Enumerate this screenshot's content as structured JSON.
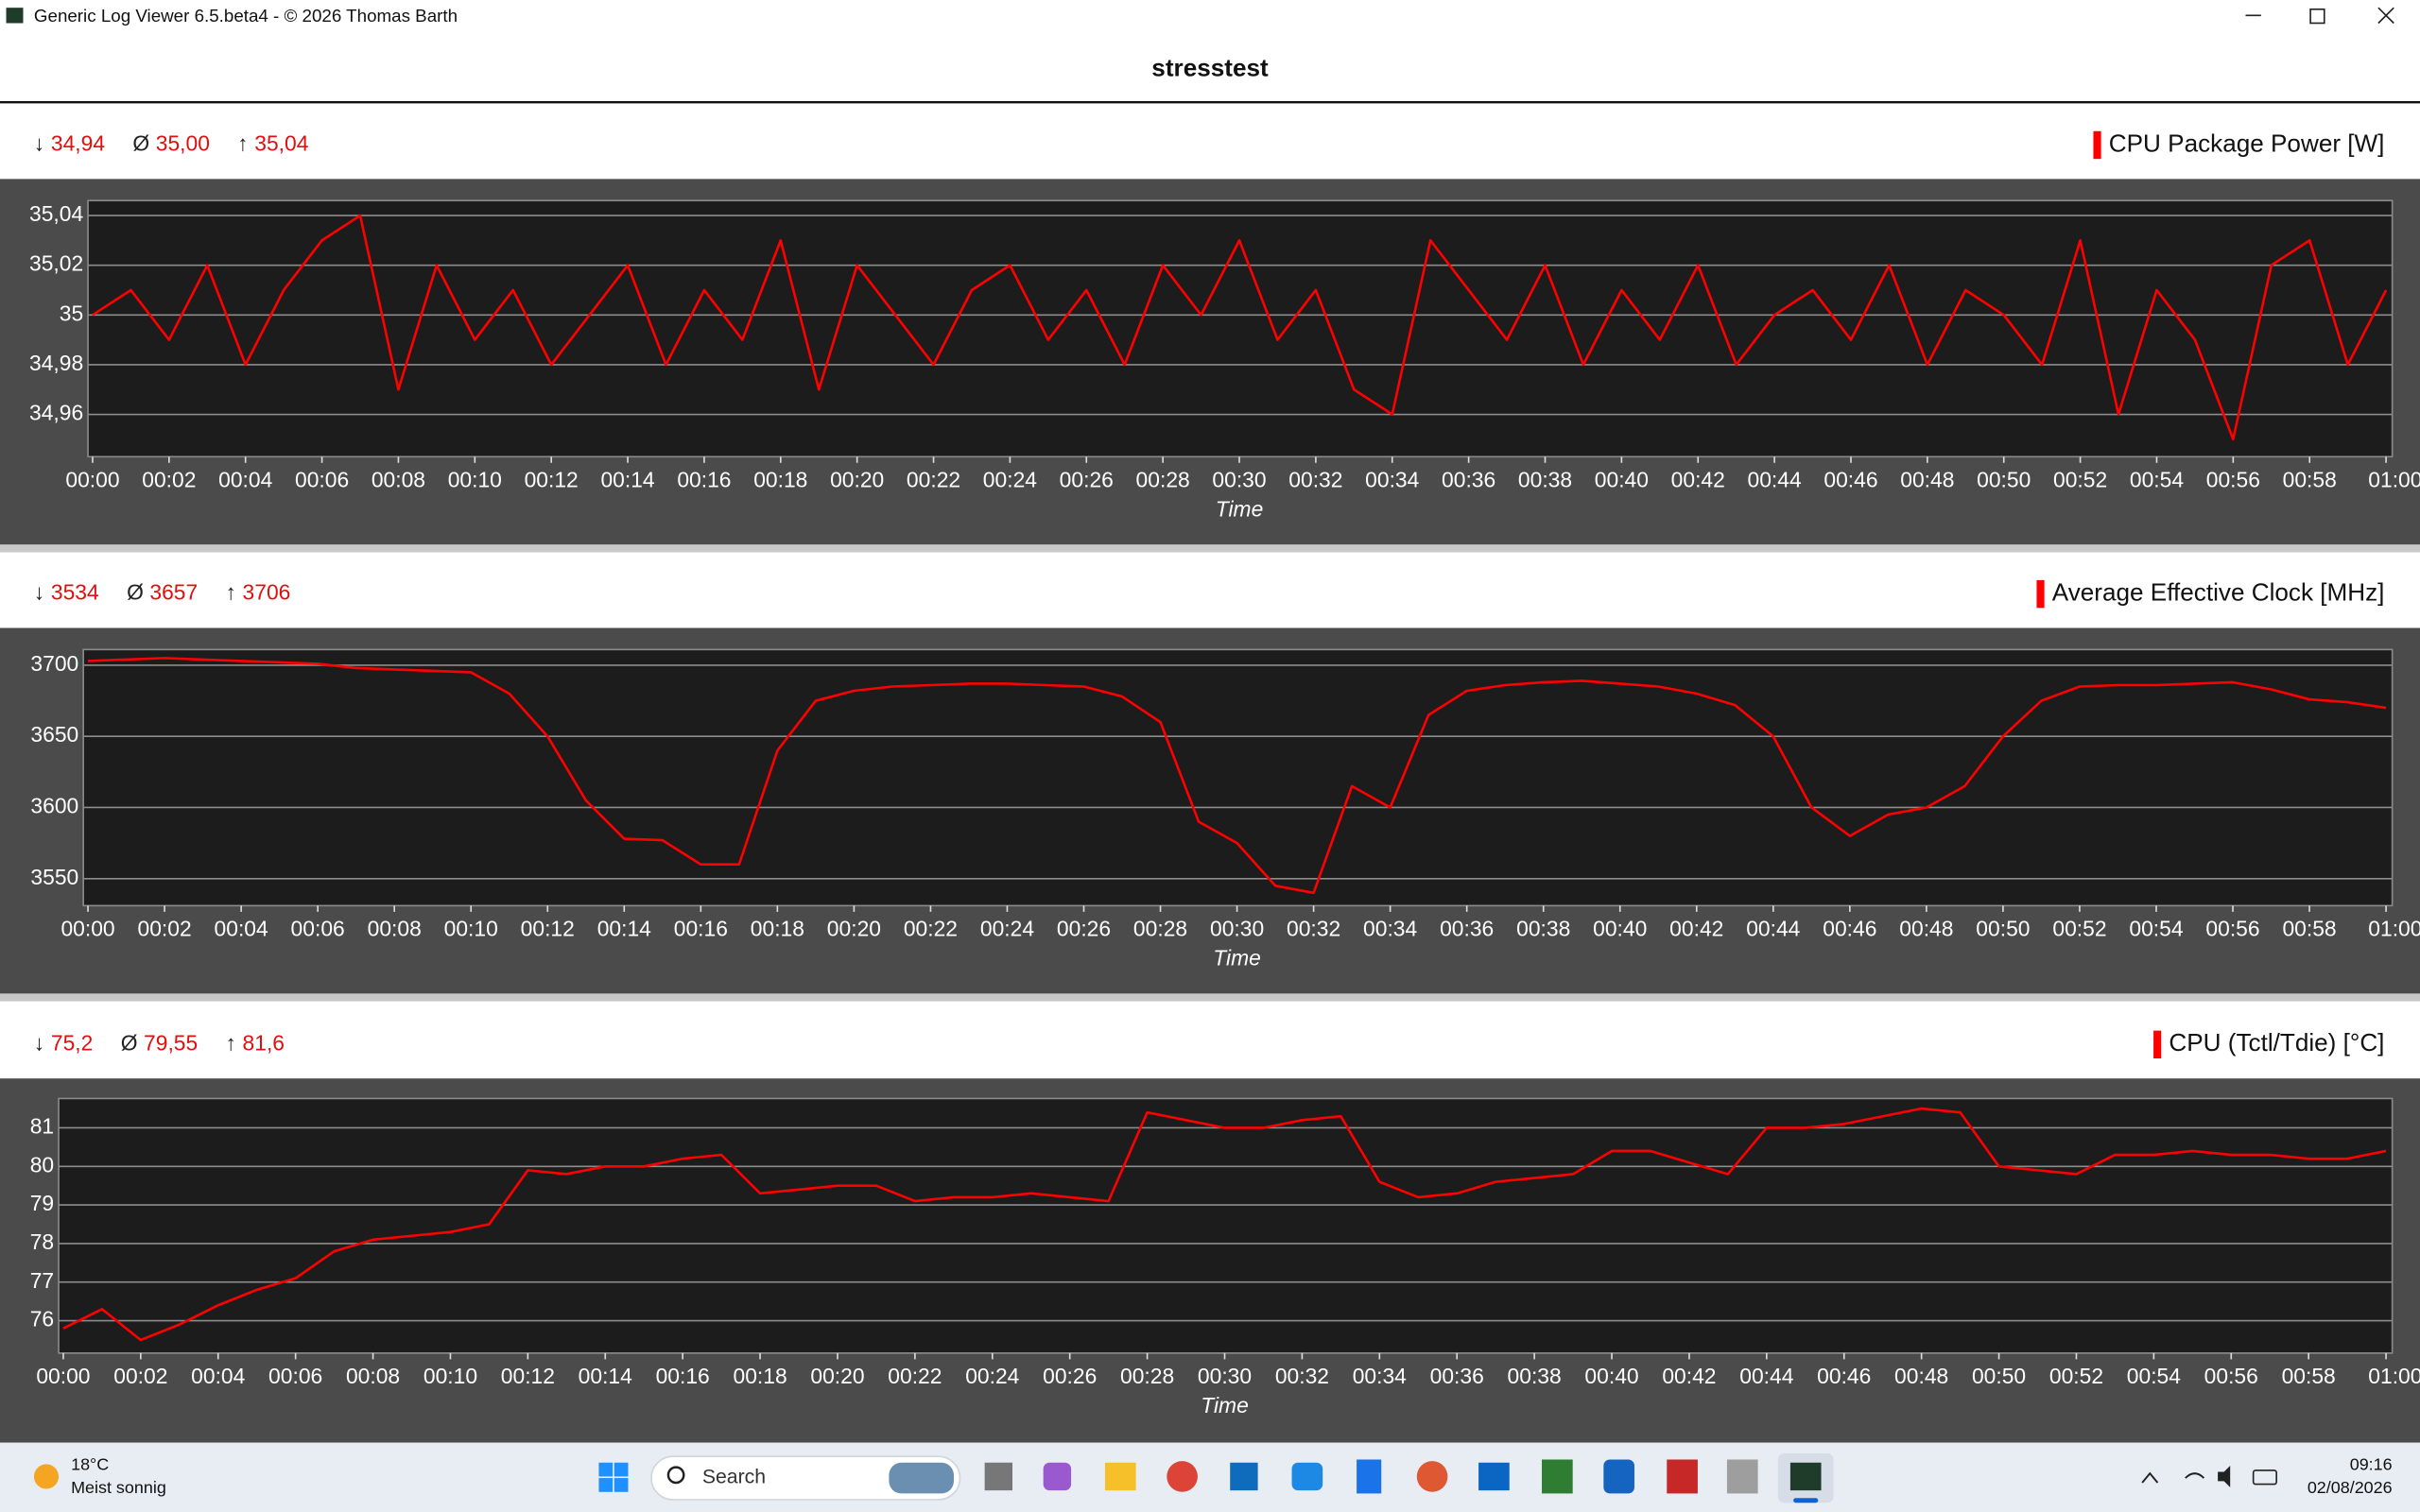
{
  "window": {
    "title": "Generic Log Viewer 6.5.beta4 - © 2026 Thomas Barth"
  },
  "header": {
    "title": "stresstest"
  },
  "chart_data": [
    {
      "type": "line",
      "stats": [
        {
          "symbol": "↓",
          "value": "34,94"
        },
        {
          "symbol": "Ø",
          "value": "35,00"
        },
        {
          "symbol": "↑",
          "value": "35,04"
        }
      ],
      "x_label": "Time",
      "x": [
        0,
        1,
        2,
        3,
        4,
        5,
        6,
        7,
        8,
        9,
        10,
        11,
        12,
        13,
        14,
        15,
        16,
        17,
        18,
        19,
        20,
        21,
        22,
        23,
        24,
        25,
        26,
        27,
        28,
        29,
        30,
        31,
        32,
        33,
        34,
        35,
        36,
        37,
        38,
        39,
        40,
        41,
        42,
        43,
        44,
        45,
        46,
        47,
        48,
        49,
        50,
        51,
        52,
        53,
        54,
        55,
        56,
        57,
        58,
        59,
        60
      ],
      "series": [
        {
          "name": "CPU Package Power [W]",
          "color": "#ff0000",
          "values": [
            35.0,
            35.01,
            34.99,
            35.02,
            34.98,
            35.01,
            35.03,
            35.04,
            34.97,
            35.02,
            34.99,
            35.01,
            34.98,
            35.0,
            35.02,
            34.98,
            35.01,
            34.99,
            35.03,
            34.97,
            35.02,
            35.0,
            34.98,
            35.01,
            35.02,
            34.99,
            35.01,
            34.98,
            35.02,
            35.0,
            35.03,
            34.99,
            35.01,
            34.97,
            34.96,
            35.03,
            35.01,
            34.99,
            35.02,
            34.98,
            35.01,
            34.99,
            35.02,
            34.98,
            35.0,
            35.01,
            34.99,
            35.02,
            34.98,
            35.01,
            35.0,
            34.98,
            35.03,
            34.96,
            35.01,
            34.99,
            34.95,
            35.02,
            35.03,
            34.98,
            35.01
          ]
        }
      ],
      "xlim": [
        0,
        60
      ],
      "xticks": [
        {
          "value": 0,
          "label": "00:00"
        },
        {
          "value": 2,
          "label": "00:02"
        },
        {
          "value": 4,
          "label": "00:04"
        },
        {
          "value": 6,
          "label": "00:06"
        },
        {
          "value": 8,
          "label": "00:08"
        },
        {
          "value": 10,
          "label": "00:10"
        },
        {
          "value": 12,
          "label": "00:12"
        },
        {
          "value": 14,
          "label": "00:14"
        },
        {
          "value": 16,
          "label": "00:16"
        },
        {
          "value": 18,
          "label": "00:18"
        },
        {
          "value": 20,
          "label": "00:20"
        },
        {
          "value": 22,
          "label": "00:22"
        },
        {
          "value": 24,
          "label": "00:24"
        },
        {
          "value": 26,
          "label": "00:26"
        },
        {
          "value": 28,
          "label": "00:28"
        },
        {
          "value": 30,
          "label": "00:30"
        },
        {
          "value": 32,
          "label": "00:32"
        },
        {
          "value": 34,
          "label": "00:34"
        },
        {
          "value": 36,
          "label": "00:36"
        },
        {
          "value": 38,
          "label": "00:38"
        },
        {
          "value": 40,
          "label": "00:40"
        },
        {
          "value": 42,
          "label": "00:42"
        },
        {
          "value": 44,
          "label": "00:44"
        },
        {
          "value": 46,
          "label": "00:46"
        },
        {
          "value": 48,
          "label": "00:48"
        },
        {
          "value": 50,
          "label": "00:50"
        },
        {
          "value": 52,
          "label": "00:52"
        },
        {
          "value": 54,
          "label": "00:54"
        },
        {
          "value": 56,
          "label": "00:56"
        },
        {
          "value": 58,
          "label": "00:58"
        },
        {
          "value": 60,
          "label": "01:00"
        }
      ],
      "ylim": [
        34.943,
        35.046
      ],
      "yticks": [
        {
          "value": 34.96,
          "label": "34,96"
        },
        {
          "value": 34.98,
          "label": "34,98"
        },
        35,
        {
          "value": 35.02,
          "label": "35,02"
        },
        {
          "value": 35.04,
          "label": "35,04"
        }
      ],
      "grid": true
    },
    {
      "type": "line",
      "stats": [
        {
          "symbol": "↓",
          "value": "3534"
        },
        {
          "symbol": "Ø",
          "value": "3657"
        },
        {
          "symbol": "↑",
          "value": "3706"
        }
      ],
      "x_label": "Time",
      "x": [
        0,
        1,
        2,
        3,
        4,
        5,
        6,
        7,
        8,
        9,
        10,
        11,
        12,
        13,
        14,
        15,
        16,
        17,
        18,
        19,
        20,
        21,
        22,
        23,
        24,
        25,
        26,
        27,
        28,
        29,
        30,
        31,
        32,
        33,
        34,
        35,
        36,
        37,
        38,
        39,
        40,
        41,
        42,
        43,
        44,
        45,
        46,
        47,
        48,
        49,
        50,
        51,
        52,
        53,
        54,
        55,
        56,
        57,
        58,
        59,
        60
      ],
      "series": [
        {
          "name": "Average Effective Clock [MHz]",
          "color": "#ff0000",
          "values": [
            3703,
            3704,
            3705,
            3704,
            3703,
            3702,
            3701,
            3698,
            3697,
            3696,
            3695,
            3680,
            3650,
            3605,
            3578,
            3577,
            3560,
            3560,
            3640,
            3675,
            3682,
            3685,
            3686,
            3687,
            3687,
            3686,
            3685,
            3678,
            3660,
            3590,
            3575,
            3545,
            3540,
            3615,
            3600,
            3665,
            3682,
            3686,
            3688,
            3689,
            3687,
            3685,
            3680,
            3672,
            3650,
            3600,
            3580,
            3595,
            3600,
            3615,
            3650,
            3675,
            3685,
            3686,
            3686,
            3687,
            3688,
            3683,
            3676,
            3674,
            3670
          ]
        }
      ],
      "xlim": [
        0,
        60
      ],
      "xticks": [
        {
          "value": 0,
          "label": "00:00"
        },
        {
          "value": 2,
          "label": "00:02"
        },
        {
          "value": 4,
          "label": "00:04"
        },
        {
          "value": 6,
          "label": "00:06"
        },
        {
          "value": 8,
          "label": "00:08"
        },
        {
          "value": 10,
          "label": "00:10"
        },
        {
          "value": 12,
          "label": "00:12"
        },
        {
          "value": 14,
          "label": "00:14"
        },
        {
          "value": 16,
          "label": "00:16"
        },
        {
          "value": 18,
          "label": "00:18"
        },
        {
          "value": 20,
          "label": "00:20"
        },
        {
          "value": 22,
          "label": "00:22"
        },
        {
          "value": 24,
          "label": "00:24"
        },
        {
          "value": 26,
          "label": "00:26"
        },
        {
          "value": 28,
          "label": "00:28"
        },
        {
          "value": 30,
          "label": "00:30"
        },
        {
          "value": 32,
          "label": "00:32"
        },
        {
          "value": 34,
          "label": "00:34"
        },
        {
          "value": 36,
          "label": "00:36"
        },
        {
          "value": 38,
          "label": "00:38"
        },
        {
          "value": 40,
          "label": "00:40"
        },
        {
          "value": 42,
          "label": "00:42"
        },
        {
          "value": 44,
          "label": "00:44"
        },
        {
          "value": 46,
          "label": "00:46"
        },
        {
          "value": 48,
          "label": "00:48"
        },
        {
          "value": 50,
          "label": "00:50"
        },
        {
          "value": 52,
          "label": "00:52"
        },
        {
          "value": 54,
          "label": "00:54"
        },
        {
          "value": 56,
          "label": "00:56"
        },
        {
          "value": 58,
          "label": "00:58"
        },
        {
          "value": 60,
          "label": "01:00"
        }
      ],
      "ylim": [
        3531,
        3711
      ],
      "yticks": [
        3550,
        3600,
        3650,
        3700
      ],
      "grid": true
    },
    {
      "type": "line",
      "stats": [
        {
          "symbol": "↓",
          "value": "75,2"
        },
        {
          "symbol": "Ø",
          "value": "79,55"
        },
        {
          "symbol": "↑",
          "value": "81,6"
        }
      ],
      "x_label": "Time",
      "x": [
        0,
        1,
        2,
        3,
        4,
        5,
        6,
        7,
        8,
        9,
        10,
        11,
        12,
        13,
        14,
        15,
        16,
        17,
        18,
        19,
        20,
        21,
        22,
        23,
        24,
        25,
        26,
        27,
        28,
        29,
        30,
        31,
        32,
        33,
        34,
        35,
        36,
        37,
        38,
        39,
        40,
        41,
        42,
        43,
        44,
        45,
        46,
        47,
        48,
        49,
        50,
        51,
        52,
        53,
        54,
        55,
        56,
        57,
        58,
        59,
        60
      ],
      "series": [
        {
          "name": "CPU (Tctl/Tdie) [°C]",
          "color": "#ff0000",
          "values": [
            75.8,
            76.3,
            75.5,
            75.9,
            76.4,
            76.8,
            77.1,
            77.8,
            78.1,
            78.2,
            78.3,
            78.5,
            79.9,
            79.8,
            80.0,
            80.0,
            80.2,
            80.3,
            79.3,
            79.4,
            79.5,
            79.5,
            79.1,
            79.2,
            79.2,
            79.3,
            79.2,
            79.1,
            81.4,
            81.2,
            81.0,
            81.0,
            81.2,
            81.3,
            79.6,
            79.2,
            79.3,
            79.6,
            79.7,
            79.8,
            80.4,
            80.4,
            80.1,
            79.8,
            81.0,
            81.0,
            81.1,
            81.3,
            81.5,
            81.4,
            80.0,
            79.9,
            79.8,
            80.3,
            80.3,
            80.4,
            80.3,
            80.3,
            80.2,
            80.2,
            80.4
          ]
        }
      ],
      "xlim": [
        0,
        60
      ],
      "xticks": [
        {
          "value": 0,
          "label": "00:00"
        },
        {
          "value": 2,
          "label": "00:02"
        },
        {
          "value": 4,
          "label": "00:04"
        },
        {
          "value": 6,
          "label": "00:06"
        },
        {
          "value": 8,
          "label": "00:08"
        },
        {
          "value": 10,
          "label": "00:10"
        },
        {
          "value": 12,
          "label": "00:12"
        },
        {
          "value": 14,
          "label": "00:14"
        },
        {
          "value": 16,
          "label": "00:16"
        },
        {
          "value": 18,
          "label": "00:18"
        },
        {
          "value": 20,
          "label": "00:20"
        },
        {
          "value": 22,
          "label": "00:22"
        },
        {
          "value": 24,
          "label": "00:24"
        },
        {
          "value": 26,
          "label": "00:26"
        },
        {
          "value": 28,
          "label": "00:28"
        },
        {
          "value": 30,
          "label": "00:30"
        },
        {
          "value": 32,
          "label": "00:32"
        },
        {
          "value": 34,
          "label": "00:34"
        },
        {
          "value": 36,
          "label": "00:36"
        },
        {
          "value": 38,
          "label": "00:38"
        },
        {
          "value": 40,
          "label": "00:40"
        },
        {
          "value": 42,
          "label": "00:42"
        },
        {
          "value": 44,
          "label": "00:44"
        },
        {
          "value": 46,
          "label": "00:46"
        },
        {
          "value": 48,
          "label": "00:48"
        },
        {
          "value": 50,
          "label": "00:50"
        },
        {
          "value": 52,
          "label": "00:52"
        },
        {
          "value": 54,
          "label": "00:54"
        },
        {
          "value": 56,
          "label": "00:56"
        },
        {
          "value": 58,
          "label": "00:58"
        },
        {
          "value": 60,
          "label": "01:00"
        }
      ],
      "ylim": [
        75.16,
        81.76
      ],
      "yticks": [
        76,
        77,
        78,
        79,
        80,
        81
      ],
      "grid": true
    }
  ],
  "taskbar": {
    "weather_temp": "18°C",
    "weather_text": "Meist sonnig",
    "search": "Search",
    "time": "09:16",
    "date": "02/08/2026"
  }
}
